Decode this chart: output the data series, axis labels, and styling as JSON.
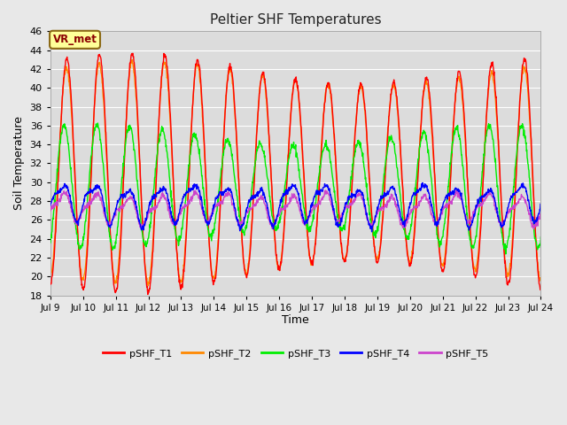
{
  "title": "Peltier SHF Temperatures",
  "xlabel": "Time",
  "ylabel": "Soil Temperature",
  "ylim": [
    18,
    46
  ],
  "yticks": [
    18,
    20,
    22,
    24,
    26,
    28,
    30,
    32,
    34,
    36,
    38,
    40,
    42,
    44,
    46
  ],
  "xtick_labels": [
    "Jul 9",
    "Jul 10",
    "Jul 11",
    "Jul 12",
    "Jul 13",
    "Jul 14",
    "Jul 15",
    "Jul 16",
    "Jul 17",
    "Jul 18",
    "Jul 19",
    "Jul 20",
    "Jul 21",
    "Jul 22",
    "Jul 23",
    "Jul 24"
  ],
  "background_color": "#e8e8e8",
  "plot_bg_color": "#dcdcdc",
  "grid_color": "#ffffff",
  "series": [
    {
      "name": "pSHF_T1",
      "color": "#ff0000"
    },
    {
      "name": "pSHF_T2",
      "color": "#ff8800"
    },
    {
      "name": "pSHF_T3",
      "color": "#00ee00"
    },
    {
      "name": "pSHF_T4",
      "color": "#0000ff"
    },
    {
      "name": "pSHF_T5",
      "color": "#cc44cc"
    }
  ],
  "annotation_text": "VR_met",
  "annotation_color": "#8b0000",
  "annotation_bg": "#ffff99",
  "annotation_border": "#8b6914",
  "n_days": 15,
  "pts_per_day": 96
}
